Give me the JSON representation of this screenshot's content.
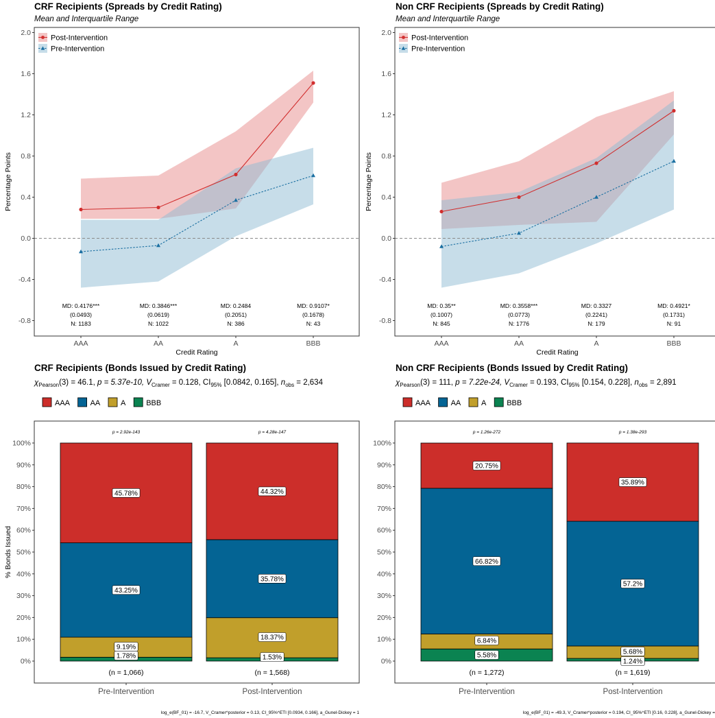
{
  "colors": {
    "post": "#d12e2e",
    "pre": "#1a6fa1",
    "post_fill": "#e88b8b",
    "pre_fill": "#8fbcd4",
    "AAA": "#cc2e2a",
    "AA": "#046494",
    "A": "#c19f2b",
    "BBB": "#0b8351"
  },
  "panels": {
    "tl": {
      "title": "CRF Recipients (Spreads by Credit Rating)",
      "subtitle": "Mean and Interquartile Range",
      "ylabel": "Percentage Points",
      "xlabel": "Credit Rating",
      "legend": [
        "Post-Intervention",
        "Pre-Intervention"
      ],
      "annotations": [
        {
          "md": "MD: 0.4176***",
          "se": "(0.0493)",
          "n": "N: 1183"
        },
        {
          "md": "MD: 0.3846***",
          "se": "(0.0619)",
          "n": "N: 1022"
        },
        {
          "md": "MD: 0.2484",
          "se": "(0.2051)",
          "n": "N: 386"
        },
        {
          "md": "MD: 0.9107*",
          "se": "(0.1678)",
          "n": "N: 43"
        }
      ]
    },
    "tr": {
      "title": "Non CRF Recipients (Spreads by Credit Rating)",
      "subtitle": "Mean and Interquartile Range",
      "ylabel": "Percentage Points",
      "xlabel": "Credit Rating",
      "legend": [
        "Post-Intervention",
        "Pre-Intervention"
      ],
      "annotations": [
        {
          "md": "MD: 0.35**",
          "se": "(0.1007)",
          "n": "N: 845"
        },
        {
          "md": "MD: 0.3558***",
          "se": "(0.0773)",
          "n": "N: 1776"
        },
        {
          "md": "MD: 0.3327",
          "se": "(0.2241)",
          "n": "N: 179"
        },
        {
          "md": "MD: 0.4921*",
          "se": "(0.1731)",
          "n": "N: 91"
        }
      ]
    },
    "bl": {
      "title": "CRF Recipients (Bonds Issued by Credit Rating)",
      "stat": {
        "chi": "χ",
        "sub": "Pearson",
        "df": "(3) = 46.1, ",
        "p": "p = 5.37e-10, ",
        "v": "V",
        "vsub": "Cramer",
        "rest": " = 0.128, CI",
        "cisub": "95%",
        "ci": " [0.0842, 0.165], ",
        "n": "n",
        "nsub": "obs",
        "nval": " = 2,634"
      },
      "ylabel": "% Bonds Issued",
      "legend": [
        "AAA",
        "AA",
        "A",
        "BBB"
      ],
      "bar_pvals": [
        "p = 2.92e-143",
        "p = 4.28e-147"
      ],
      "bar_n": [
        "(n = 1,066)",
        "(n = 1,568)"
      ],
      "footer": "log_e(BF_01) = -16.7, V_Cramer^posterior = 0.13, CI_95%^ETI [0.0934, 0.166], a_Gunel-Dickey = 1"
    },
    "br": {
      "title": "Non CRF Recipients (Bonds Issued by Credit Rating)",
      "stat": {
        "chi": "χ",
        "sub": "Pearson",
        "df": "(3) = 111, ",
        "p": "p = 7.22e-24, ",
        "v": "V",
        "vsub": "Cramer",
        "rest": " = 0.193, CI",
        "cisub": "95%",
        "ci": " [0.154, 0.228], ",
        "n": "n",
        "nsub": "obs",
        "nval": " = 2,891"
      },
      "ylabel": "% Bonds Issued",
      "legend": [
        "AAA",
        "AA",
        "A",
        "BBB"
      ],
      "bar_pvals": [
        "p = 1.26e-272",
        "p = 1.38e-293"
      ],
      "bar_n": [
        "(n = 1,272)",
        "(n = 1,619)"
      ],
      "footer": "log_e(BF_01) = -49.3, V_Cramer^posterior = 0.194, CI_95%^ETI [0.16, 0.228], a_Gunel-Dickey ="
    }
  },
  "chart_data": [
    {
      "type": "line",
      "title": "CRF Recipients (Spreads by Credit Rating)",
      "subtitle": "Mean and Interquartile Range",
      "xlabel": "Credit Rating",
      "ylabel": "Percentage Points",
      "categories": [
        "AAA",
        "AA",
        "A",
        "BBB"
      ],
      "ylim": [
        -0.95,
        2.05
      ],
      "yticks": [
        -0.8,
        -0.4,
        0.0,
        0.4,
        0.8,
        1.2,
        1.6,
        2.0
      ],
      "series": [
        {
          "name": "Post-Intervention",
          "values": [
            0.28,
            0.3,
            0.62,
            1.51
          ],
          "q1": [
            0.19,
            0.19,
            0.29,
            1.32
          ],
          "q3": [
            0.58,
            0.61,
            1.04,
            1.63
          ]
        },
        {
          "name": "Pre-Intervention",
          "values": [
            -0.13,
            -0.07,
            0.37,
            0.61
          ],
          "q1": [
            -0.48,
            -0.42,
            0.02,
            0.33
          ],
          "q3": [
            0.18,
            0.18,
            0.68,
            0.88
          ]
        }
      ]
    },
    {
      "type": "line",
      "title": "Non CRF Recipients (Spreads by Credit Rating)",
      "subtitle": "Mean and Interquartile Range",
      "xlabel": "Credit Rating",
      "ylabel": "Percentage Points",
      "categories": [
        "AAA",
        "AA",
        "A",
        "BBB"
      ],
      "ylim": [
        -0.95,
        2.05
      ],
      "yticks": [
        -0.8,
        -0.4,
        0.0,
        0.4,
        0.8,
        1.2,
        1.6,
        2.0
      ],
      "series": [
        {
          "name": "Post-Intervention",
          "values": [
            0.26,
            0.4,
            0.73,
            1.24
          ],
          "q1": [
            0.09,
            0.13,
            0.16,
            1.01
          ],
          "q3": [
            0.54,
            0.75,
            1.18,
            1.43
          ]
        },
        {
          "name": "Pre-Intervention",
          "values": [
            -0.08,
            0.05,
            0.4,
            0.75
          ],
          "q1": [
            -0.48,
            -0.34,
            -0.05,
            0.28
          ],
          "q3": [
            0.37,
            0.45,
            0.78,
            1.34
          ]
        }
      ]
    },
    {
      "type": "bar",
      "title": "CRF Recipients (Bonds Issued by Credit Rating)",
      "ylabel": "% Bonds Issued",
      "categories": [
        "Pre-Intervention",
        "Post-Intervention"
      ],
      "yticks": [
        "0%",
        "10%",
        "20%",
        "30%",
        "40%",
        "50%",
        "60%",
        "70%",
        "80%",
        "90%",
        "100%"
      ],
      "series": [
        {
          "name": "BBB",
          "values": [
            1.78,
            1.53
          ],
          "labels": [
            "1.78%",
            "1.53%"
          ]
        },
        {
          "name": "A",
          "values": [
            9.19,
            18.37
          ],
          "labels": [
            "9.19%",
            "18.37%"
          ]
        },
        {
          "name": "AA",
          "values": [
            43.25,
            35.78
          ],
          "labels": [
            "43.25%",
            "35.78%"
          ]
        },
        {
          "name": "AAA",
          "values": [
            45.78,
            44.32
          ],
          "labels": [
            "45.78%",
            "44.32%"
          ]
        }
      ]
    },
    {
      "type": "bar",
      "title": "Non CRF Recipients (Bonds Issued by Credit Rating)",
      "ylabel": "% Bonds Issued",
      "categories": [
        "Pre-Intervention",
        "Post-Intervention"
      ],
      "yticks": [
        "0%",
        "10%",
        "20%",
        "30%",
        "40%",
        "50%",
        "60%",
        "70%",
        "80%",
        "90%",
        "100%"
      ],
      "series": [
        {
          "name": "BBB",
          "values": [
            5.58,
            1.24
          ],
          "labels": [
            "5.58%",
            "1.24%"
          ]
        },
        {
          "name": "A",
          "values": [
            6.84,
            5.68
          ],
          "labels": [
            "6.84%",
            "5.68%"
          ]
        },
        {
          "name": "AA",
          "values": [
            66.82,
            57.2
          ],
          "labels": [
            "66.82%",
            "57.2%"
          ]
        },
        {
          "name": "AAA",
          "values": [
            20.75,
            35.89
          ],
          "labels": [
            "20.75%",
            "35.89%"
          ]
        }
      ]
    }
  ]
}
